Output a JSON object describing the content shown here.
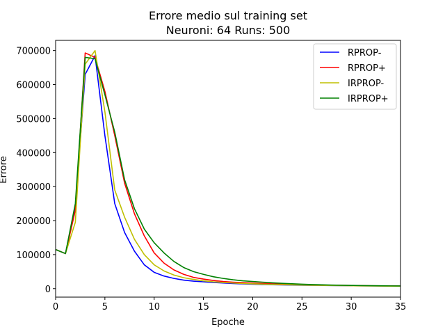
{
  "chart_data": {
    "type": "line",
    "title": "Errore medio sul training set",
    "subtitle": "Neuroni: 64 Runs: 500",
    "xlabel": "Epoche",
    "ylabel": "Errore",
    "xlim": [
      0,
      35
    ],
    "ylim": [
      -25000,
      730000
    ],
    "xticks": [
      0,
      5,
      10,
      15,
      20,
      25,
      30,
      35
    ],
    "yticks": [
      0,
      100000,
      200000,
      300000,
      400000,
      500000,
      600000,
      700000
    ],
    "grid": false,
    "legend_position": "upper right",
    "x": [
      0,
      1,
      2,
      3,
      4,
      5,
      6,
      7,
      8,
      9,
      10,
      11,
      12,
      13,
      14,
      15,
      16,
      17,
      18,
      19,
      20,
      21,
      22,
      23,
      24,
      25,
      26,
      27,
      28,
      29,
      30,
      31,
      32,
      33,
      34,
      35
    ],
    "series": [
      {
        "name": "RPROP-",
        "color": "#0000ff",
        "values": [
          115000,
          103000,
          240000,
          630000,
          685000,
          450000,
          250000,
          165000,
          110000,
          70000,
          48000,
          37000,
          30000,
          25000,
          22000,
          20000,
          18000,
          16500,
          15000,
          14000,
          13000,
          12000,
          11500,
          11000,
          10500,
          10000,
          9700,
          9400,
          9100,
          8800,
          8500,
          8200,
          8000,
          7800,
          7600,
          7400
        ]
      },
      {
        "name": "RPROP+",
        "color": "#ff0000",
        "values": [
          115000,
          103000,
          230000,
          693000,
          680000,
          580000,
          450000,
          310000,
          220000,
          155000,
          105000,
          75000,
          55000,
          42000,
          33000,
          28000,
          24000,
          21000,
          19000,
          17500,
          16000,
          15000,
          14000,
          13000,
          12200,
          11500,
          11000,
          10500,
          10000,
          9600,
          9200,
          8800,
          8500,
          8200,
          7900,
          7600
        ]
      },
      {
        "name": "IRPROP-",
        "color": "#bfbf00",
        "values": [
          115000,
          103000,
          195000,
          660000,
          700000,
          520000,
          290000,
          210000,
          145000,
          100000,
          70000,
          52000,
          40000,
          32000,
          27000,
          23000,
          20000,
          18000,
          16500,
          15000,
          14000,
          13000,
          12200,
          11500,
          11000,
          10500,
          10000,
          9600,
          9200,
          8800,
          8500,
          8200,
          7900,
          7600,
          7300,
          7000
        ]
      },
      {
        "name": "IRPROP+",
        "color": "#008000",
        "values": [
          115000,
          103000,
          250000,
          680000,
          676000,
          570000,
          460000,
          320000,
          235000,
          175000,
          135000,
          105000,
          80000,
          62000,
          50000,
          42000,
          35000,
          30000,
          26000,
          23000,
          21000,
          19000,
          17000,
          15500,
          14200,
          13000,
          12000,
          11200,
          10500,
          10000,
          9500,
          9000,
          8600,
          8300,
          8000,
          7800
        ]
      }
    ]
  }
}
